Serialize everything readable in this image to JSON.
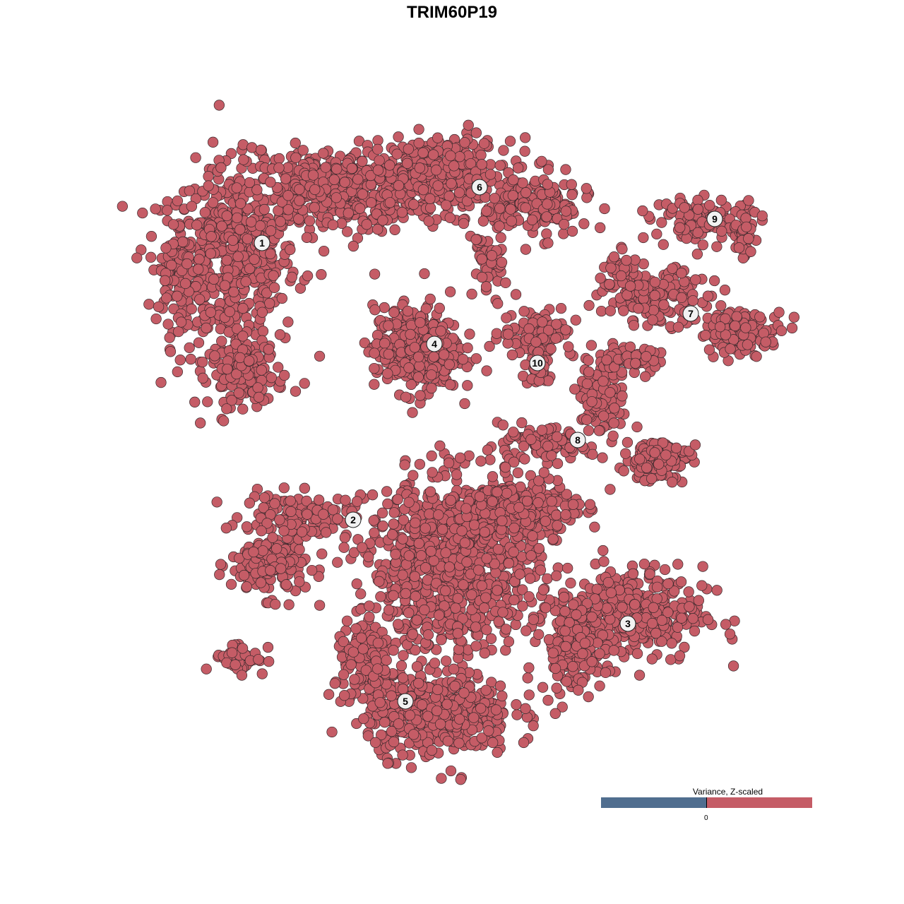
{
  "chart_data": {
    "type": "scatter",
    "title": "TRIM60P19",
    "xlabel": "",
    "ylabel": "",
    "xlim": [
      -64,
      64
    ],
    "ylim": [
      -64,
      64
    ],
    "grid": false,
    "axes_visible": false,
    "point_color": "#c55c66",
    "point_outline": "#3b2a2d",
    "clusters": [
      {
        "label": "1",
        "label_pos": [
          -26.9,
          29.6
        ],
        "blobs": [
          [
            -31,
            27,
            6,
            9,
            520
          ],
          [
            -17,
            37,
            8,
            4,
            420
          ],
          [
            -39,
            26,
            2.5,
            5,
            90
          ],
          [
            -29,
            11,
            3.5,
            3,
            120
          ]
        ]
      },
      {
        "label": "2",
        "label_pos": [
          -14,
          -9.6
        ],
        "blobs": [
          [
            -26,
            -16,
            3.5,
            3,
            160
          ],
          [
            -22,
            -9,
            5,
            2,
            130
          ],
          [
            -30,
            -29,
            2.5,
            1.5,
            45
          ]
        ]
      },
      {
        "label": "3",
        "label_pos": [
          24.9,
          -24.3
        ],
        "blobs": [
          [
            25,
            -23,
            7,
            4.5,
            380
          ],
          [
            17,
            -28,
            3,
            4,
            140
          ]
        ]
      },
      {
        "label": "4",
        "label_pos": [
          -2.5,
          15.3
        ],
        "blobs": [
          [
            -5,
            14.5,
            4,
            4,
            380
          ]
        ]
      },
      {
        "label": "5",
        "label_pos": [
          -6.6,
          -35.3
        ],
        "blobs": [
          [
            -2,
            -37,
            7,
            4,
            420
          ],
          [
            -12,
            -30,
            3,
            4,
            150
          ]
        ]
      },
      {
        "label": "6",
        "label_pos": [
          3.9,
          37.5
        ],
        "blobs": [
          [
            -2,
            39,
            7,
            3.5,
            330
          ],
          [
            12,
            35,
            5,
            3,
            170
          ],
          [
            5,
            27,
            1.5,
            3.5,
            50
          ]
        ]
      },
      {
        "label": "7",
        "label_pos": [
          33.8,
          19.6
        ],
        "blobs": [
          [
            29,
            22,
            5,
            2.5,
            170
          ],
          [
            41,
            17,
            4,
            2,
            120
          ],
          [
            24,
            26,
            1.5,
            2,
            35
          ]
        ]
      },
      {
        "label": "8",
        "label_pos": [
          17.8,
          1.7
        ],
        "blobs": [
          [
            21,
            8,
            2,
            4,
            110
          ],
          [
            29,
            -1,
            3,
            2,
            130
          ],
          [
            12,
            1,
            5,
            1.5,
            90
          ],
          [
            25,
            13,
            3,
            1.2,
            50
          ]
        ]
      },
      {
        "label": "9",
        "label_pos": [
          37.2,
          33
        ],
        "blobs": [
          [
            36,
            33,
            5,
            2,
            110
          ],
          [
            41.5,
            30,
            1,
            3,
            35
          ]
        ]
      },
      {
        "label": "10",
        "label_pos": [
          12.1,
          12.6
        ],
        "blobs": [
          [
            12,
            17,
            3.5,
            2.5,
            90
          ],
          [
            12.5,
            12,
            1.5,
            2,
            40
          ]
        ]
      },
      {
        "label": "",
        "label_pos": null,
        "blobs": [
          [
            0,
            -16,
            8,
            8,
            900
          ],
          [
            10,
            -8,
            5,
            3,
            280
          ]
        ]
      }
    ],
    "legend": {
      "title": "Variance, Z-scaled",
      "tick_label": "0",
      "low_color": "#506e8f",
      "high_color": "#c55c66",
      "placement": "bottom-right"
    }
  }
}
